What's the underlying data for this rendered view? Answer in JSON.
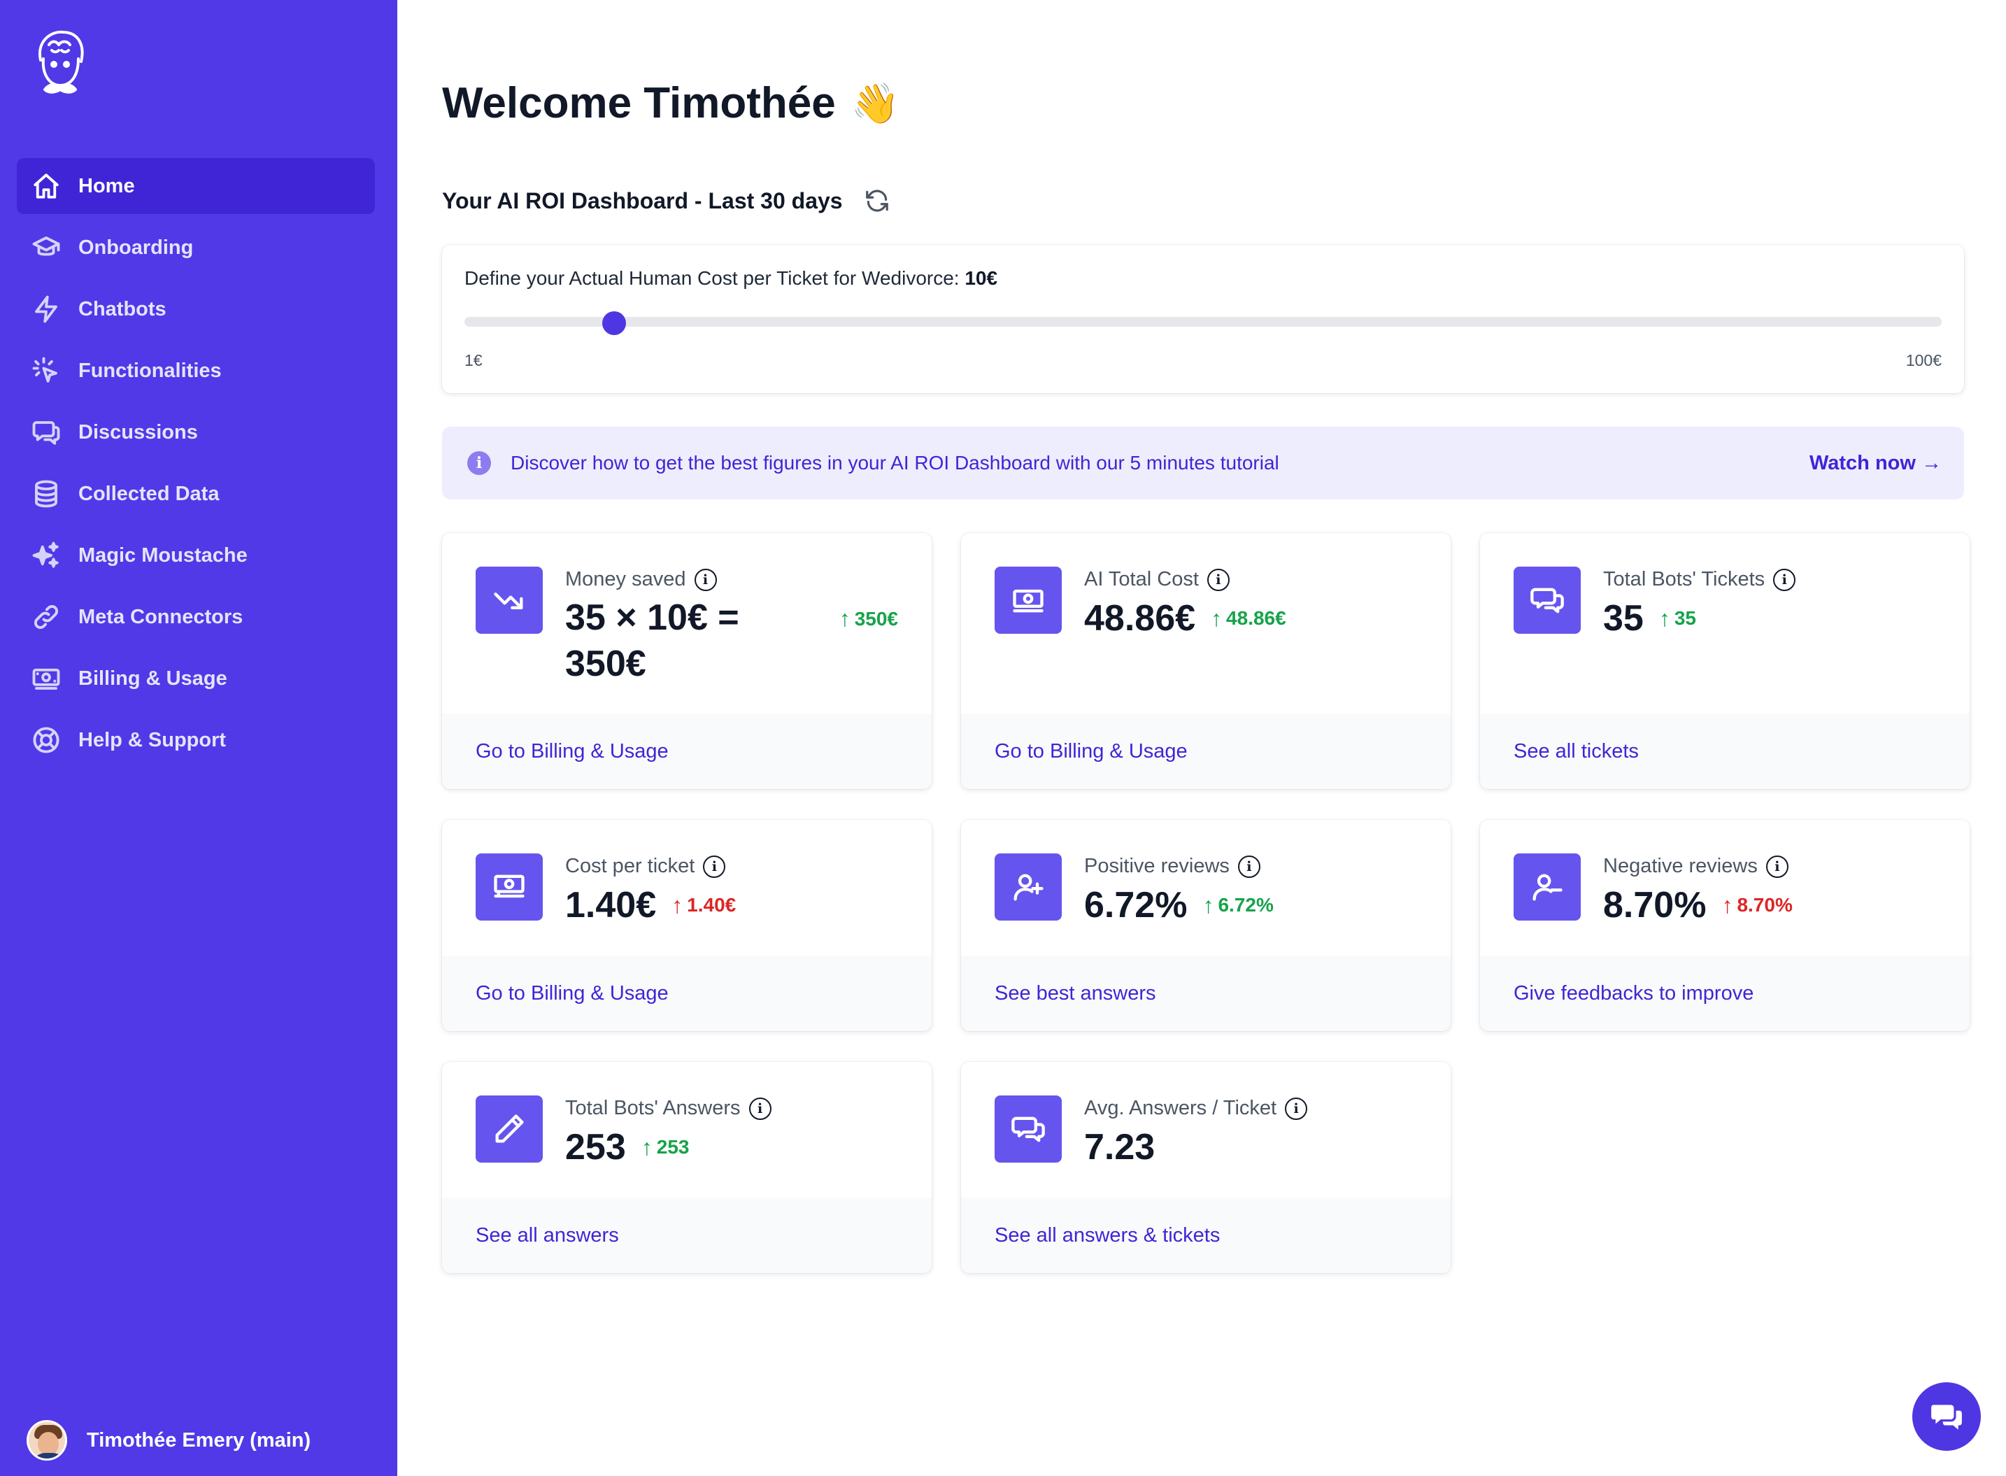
{
  "sidebar": {
    "items": [
      {
        "label": "Home",
        "icon": "home-icon",
        "active": true
      },
      {
        "label": "Onboarding",
        "icon": "graduation-cap-icon"
      },
      {
        "label": "Chatbots",
        "icon": "lightning-icon"
      },
      {
        "label": "Functionalities",
        "icon": "cursor-click-icon"
      },
      {
        "label": "Discussions",
        "icon": "chat-bubbles-icon"
      },
      {
        "label": "Collected Data",
        "icon": "database-icon"
      },
      {
        "label": "Magic Moustache",
        "icon": "sparkles-icon"
      },
      {
        "label": "Meta Connectors",
        "icon": "link-icon"
      },
      {
        "label": "Billing & Usage",
        "icon": "banknote-icon"
      },
      {
        "label": "Help & Support",
        "icon": "lifebuoy-icon"
      }
    ],
    "user_name": "Timothée Emery (main)"
  },
  "header": {
    "welcome": "Welcome Timothée",
    "wave": "👋",
    "dashboard_title": "Your AI ROI Dashboard - Last 30 days"
  },
  "slider": {
    "label_prefix": "Define your Actual Human Cost per Ticket for Wedivorce:",
    "current_value": "10€",
    "min_label": "1€",
    "max_label": "100€",
    "min": 1,
    "max": 100,
    "value": 10
  },
  "banner": {
    "text": "Discover how to get the best figures in your AI ROI Dashboard with our 5 minutes tutorial",
    "link": "Watch now →",
    "info_glyph": "i"
  },
  "cards": [
    {
      "label": "Money saved",
      "value_line1": "35 × 10€ =",
      "value_line2": "350€",
      "delta": "350€",
      "delta_color": "green",
      "footer": "Go to Billing & Usage",
      "icon": "trending-down-icon"
    },
    {
      "label": "AI Total Cost",
      "value": "48.86€",
      "delta": "48.86€",
      "delta_color": "green",
      "footer": "Go to Billing & Usage",
      "icon": "banknote-icon"
    },
    {
      "label": "Total Bots' Tickets",
      "value": "35",
      "delta": "35",
      "delta_color": "green",
      "footer": "See all tickets",
      "icon": "chat-bubbles-icon"
    },
    {
      "label": "Cost per ticket",
      "value": "1.40€",
      "delta": "1.40€",
      "delta_color": "red",
      "footer": "Go to Billing & Usage",
      "icon": "banknotes-icon"
    },
    {
      "label": "Positive reviews",
      "value": "6.72%",
      "delta": "6.72%",
      "delta_color": "green",
      "footer": "See best answers",
      "icon": "user-plus-icon"
    },
    {
      "label": "Negative reviews",
      "value": "8.70%",
      "delta": "8.70%",
      "delta_color": "red",
      "footer": "Give feedbacks to improve",
      "icon": "user-minus-icon"
    },
    {
      "label": "Total Bots' Answers",
      "value": "253",
      "delta": "253",
      "delta_color": "green",
      "footer": "See all answers",
      "icon": "pencil-icon"
    },
    {
      "label": "Avg. Answers / Ticket",
      "value": "7.23",
      "delta": "",
      "delta_color": "green",
      "footer": "See all answers & tickets",
      "icon": "chat-bubbles-icon"
    }
  ],
  "colors": {
    "sidebar": "#5139E8",
    "active_nav": "#3F25D6",
    "accent": "#4F36E3",
    "positive": "#16A34A",
    "negative": "#DC2626"
  }
}
